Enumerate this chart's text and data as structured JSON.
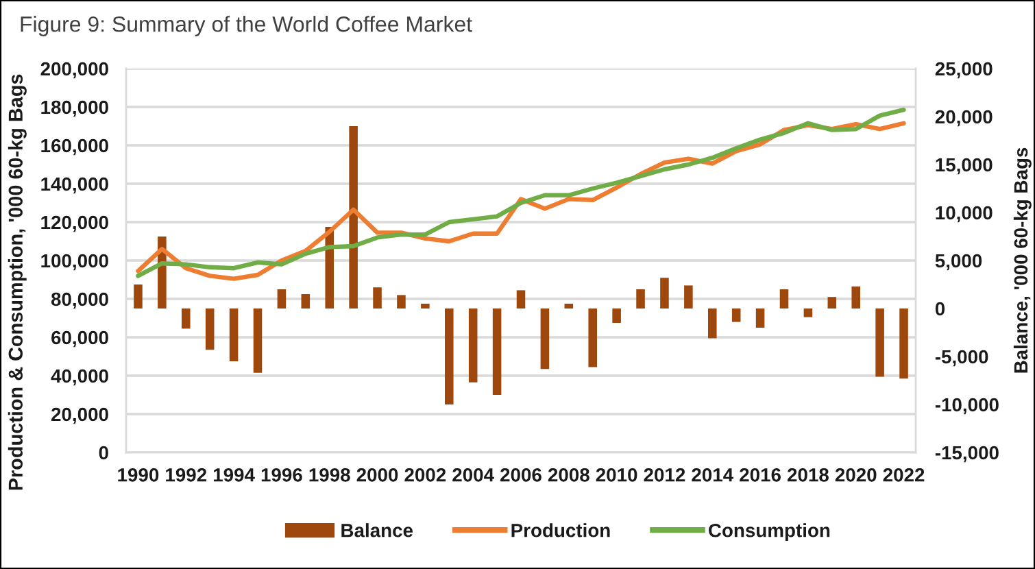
{
  "chart_data": {
    "type": "bar",
    "title": "Figure 9: Summary of the World Coffee Market",
    "ylabel": "Production & Consumption, '000 60-kg Bags",
    "y2label": "Balance, '000 60-kg Bags",
    "x": [
      1990,
      1991,
      1992,
      1993,
      1994,
      1995,
      1996,
      1997,
      1998,
      1999,
      2000,
      2001,
      2002,
      2003,
      2004,
      2005,
      2006,
      2007,
      2008,
      2009,
      2010,
      2011,
      2012,
      2013,
      2014,
      2015,
      2016,
      2017,
      2018,
      2019,
      2020,
      2021,
      2022
    ],
    "xlim": [
      1989.5,
      2022.5
    ],
    "xticks": [
      1990,
      1992,
      1994,
      1996,
      1998,
      2000,
      2002,
      2004,
      2006,
      2008,
      2010,
      2012,
      2014,
      2016,
      2018,
      2020,
      2022
    ],
    "ylim": [
      0,
      200000
    ],
    "yticks": [
      0,
      {
        "value": 20000,
        "label": "20,000"
      },
      {
        "value": 40000,
        "label": "40,000"
      },
      {
        "value": 60000,
        "label": "60,000"
      },
      {
        "value": 80000,
        "label": "80,000"
      },
      {
        "value": 100000,
        "label": "100,000"
      },
      {
        "value": 120000,
        "label": "120,000"
      },
      {
        "value": 140000,
        "label": "140,000"
      },
      {
        "value": 160000,
        "label": "160,000"
      },
      {
        "value": 180000,
        "label": "180,000"
      },
      {
        "value": 200000,
        "label": "200,000"
      }
    ],
    "y2lim": [
      -15000,
      25000
    ],
    "y2ticks": [
      {
        "value": -15000,
        "label": "-15,000"
      },
      {
        "value": -10000,
        "label": "-10,000"
      },
      {
        "value": -5000,
        "label": "-5,000"
      },
      0,
      {
        "value": 5000,
        "label": "5,000"
      },
      {
        "value": 10000,
        "label": "10,000"
      },
      {
        "value": 15000,
        "label": "15,000"
      },
      {
        "value": 20000,
        "label": "20,000"
      },
      {
        "value": 25000,
        "label": "25,000"
      }
    ],
    "grid": "y",
    "legend": "bottom",
    "series": [
      {
        "name": "Balance",
        "axis": "y2",
        "color": "#9e480e",
        "values": [
          2500,
          7500,
          -2100,
          -4300,
          -5500,
          -6700,
          2000,
          1500,
          8500,
          19000,
          2200,
          1400,
          500,
          -10000,
          -7700,
          -9000,
          1900,
          -6300,
          500,
          -6100,
          -1500,
          2000,
          3200,
          2400,
          -3100,
          -1400,
          -2000,
          2000,
          -900,
          1200,
          2300,
          -7100,
          -7300
        ]
      },
      {
        "name": "Production",
        "type": "line",
        "color": "#ed7d31",
        "values": [
          94500,
          106000,
          96000,
          92000,
          90500,
          92500,
          100000,
          105000,
          115000,
          126500,
          114500,
          114500,
          111500,
          110000,
          114000,
          114000,
          132000,
          127000,
          132000,
          131500,
          138000,
          145000,
          151000,
          153000,
          150500,
          157000,
          160500,
          168000,
          170500,
          168500,
          171000,
          168500,
          171500
        ]
      },
      {
        "name": "Consumption",
        "type": "line",
        "color": "#70ad47",
        "values": [
          92000,
          98500,
          98000,
          96500,
          96000,
          99000,
          98000,
          103500,
          107000,
          107500,
          112000,
          113500,
          113500,
          120000,
          121500,
          123000,
          130000,
          134000,
          134000,
          137500,
          140500,
          144000,
          147500,
          150000,
          153500,
          158500,
          163000,
          166500,
          171500,
          168000,
          168500,
          175500,
          178500
        ]
      }
    ]
  }
}
